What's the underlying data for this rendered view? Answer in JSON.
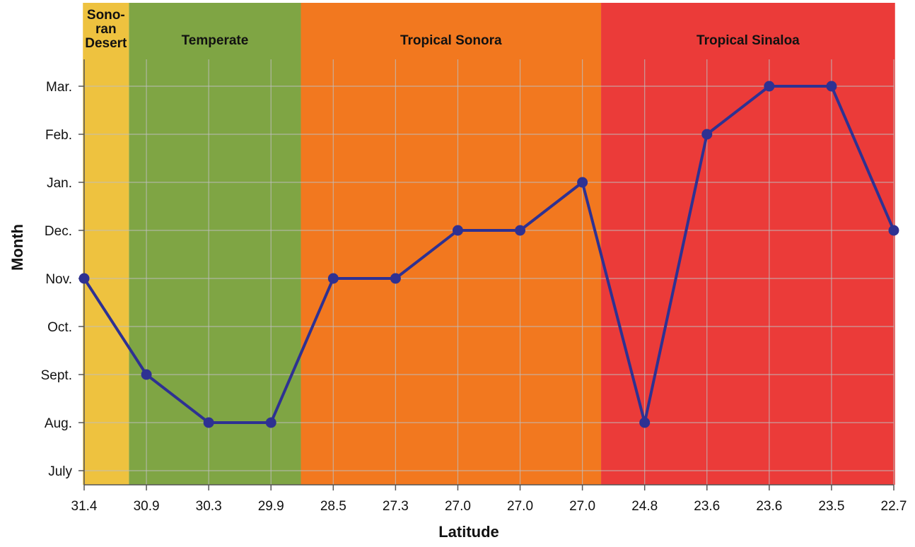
{
  "chart_data": {
    "type": "line",
    "xlabel": "Latitude",
    "ylabel": "Month",
    "x_ticks": [
      "31.4",
      "30.9",
      "30.3",
      "29.9",
      "28.5",
      "27.3",
      "27.0",
      "27.0",
      "27.0",
      "24.8",
      "23.6",
      "23.6",
      "23.5",
      "22.7"
    ],
    "y_ticks": [
      "July",
      "Aug.",
      "Sept.",
      "Oct.",
      "Nov.",
      "Dec.",
      "Jan.",
      "Feb.",
      "Mar."
    ],
    "ylim": [
      0,
      8.65
    ],
    "grid": true,
    "regions": [
      {
        "name": "Sonoran Desert",
        "label_lines": [
          "Sono-",
          "ran",
          "Desert"
        ],
        "from_index": -0.02,
        "to_index": 0.72,
        "color": "#EEC23F"
      },
      {
        "name": "Temperate",
        "label_lines": [
          "Temperate"
        ],
        "from_index": 0.72,
        "to_index": 3.48,
        "color": "#7FA544"
      },
      {
        "name": "Tropical Sonora",
        "label_lines": [
          "Tropical Sonora"
        ],
        "from_index": 3.48,
        "to_index": 8.3,
        "color": "#F2781F"
      },
      {
        "name": "Tropical Sinaloa",
        "label_lines": [
          "Tropical Sinaloa"
        ],
        "from_index": 8.3,
        "to_index": 13.02,
        "color": "#EB3B39"
      }
    ],
    "series": [
      {
        "color": "#2E3192",
        "values": [
          4,
          2,
          1,
          1,
          4,
          4,
          5,
          5,
          6,
          1,
          7,
          8,
          8,
          5
        ]
      }
    ]
  }
}
